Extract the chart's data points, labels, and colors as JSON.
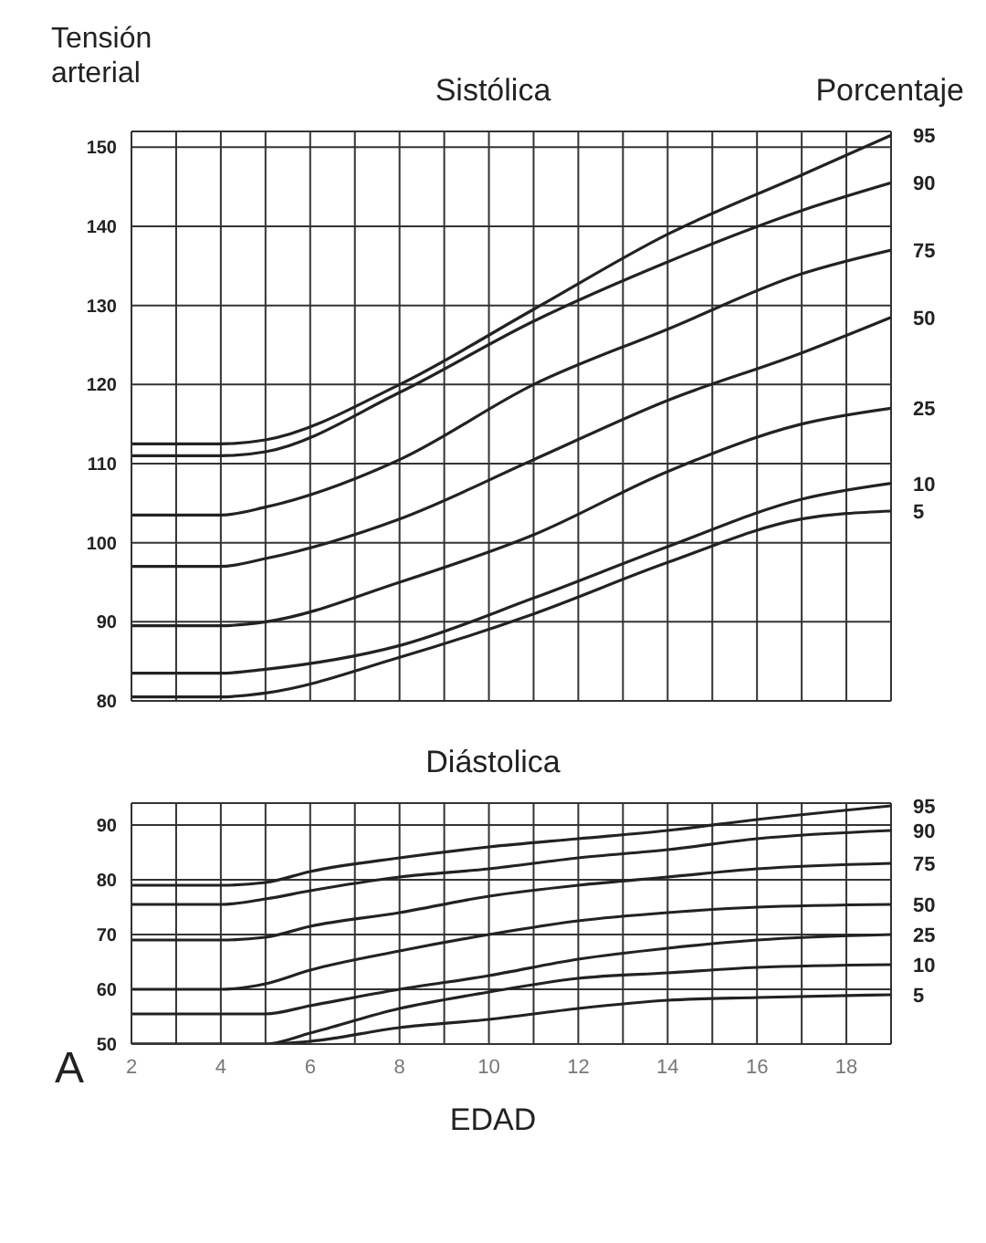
{
  "chart_data": [
    {
      "type": "line",
      "title": "Sistólica",
      "ylabel": "Tensión arterial",
      "legend_title": "Porcentaje",
      "x": [
        2,
        4,
        5,
        8,
        11,
        14,
        17,
        19
      ],
      "xlim": [
        2,
        19
      ],
      "xticks": [
        {
          "value": 2,
          "label": null
        },
        {
          "value": 3,
          "label": null
        },
        {
          "value": 4,
          "label": null
        },
        {
          "value": 5,
          "label": null
        },
        {
          "value": 6,
          "label": null
        },
        {
          "value": 7,
          "label": null
        },
        {
          "value": 8,
          "label": null
        },
        {
          "value": 9,
          "label": null
        },
        {
          "value": 10,
          "label": null
        },
        {
          "value": 11,
          "label": null
        },
        {
          "value": 12,
          "label": null
        },
        {
          "value": 13,
          "label": null
        },
        {
          "value": 14,
          "label": null
        },
        {
          "value": 15,
          "label": null
        },
        {
          "value": 16,
          "label": null
        },
        {
          "value": 17,
          "label": null
        },
        {
          "value": 18,
          "label": null
        },
        {
          "value": 19,
          "label": null
        }
      ],
      "ylim": [
        80,
        152
      ],
      "yticks": [
        80,
        90,
        100,
        110,
        120,
        130,
        140,
        150
      ],
      "tick_labels": "y",
      "grid": true,
      "marker": "none",
      "line_style": "solid",
      "legend": false,
      "series": [
        {
          "name": "95",
          "color": "#222222",
          "values": [
            112.5,
            112.5,
            113,
            120,
            129.5,
            139,
            146.5,
            151.5
          ]
        },
        {
          "name": "90",
          "color": "#222222",
          "values": [
            111,
            111,
            111.5,
            119,
            128,
            135.5,
            142,
            145.5
          ]
        },
        {
          "name": "75",
          "color": "#222222",
          "values": [
            103.5,
            103.5,
            104.5,
            110.5,
            120,
            127,
            134,
            137
          ]
        },
        {
          "name": "50",
          "color": "#222222",
          "values": [
            97,
            97,
            98,
            103,
            110.5,
            118,
            124,
            128.5
          ]
        },
        {
          "name": "25",
          "color": "#222222",
          "values": [
            89.5,
            89.5,
            90,
            95,
            101,
            109,
            115,
            117
          ]
        },
        {
          "name": "10",
          "color": "#222222",
          "values": [
            83.5,
            83.5,
            84,
            87,
            93,
            99.5,
            105.5,
            107.5
          ]
        },
        {
          "name": "5",
          "color": "#222222",
          "values": [
            80.5,
            80.5,
            81,
            85.5,
            91,
            97.5,
            103,
            104
          ]
        }
      ]
    },
    {
      "type": "line",
      "title": "Diástolica",
      "xlabel": "EDAD",
      "annotations": [
        "A"
      ],
      "x": [
        2,
        4,
        5,
        6,
        8,
        10,
        12,
        14,
        16,
        19
      ],
      "xlim": [
        2,
        19
      ],
      "xticks": [
        2,
        {
          "value": 3,
          "label": null
        },
        4,
        {
          "value": 5,
          "label": null
        },
        6,
        {
          "value": 7,
          "label": null
        },
        8,
        {
          "value": 9,
          "label": null
        },
        10,
        {
          "value": 11,
          "label": null
        },
        12,
        {
          "value": 13,
          "label": null
        },
        14,
        {
          "value": 15,
          "label": null
        },
        16,
        {
          "value": 17,
          "label": null
        },
        18,
        {
          "value": 19,
          "label": null
        }
      ],
      "ylim": [
        50,
        94
      ],
      "yticks": [
        50,
        60,
        70,
        80,
        90
      ],
      "grid": true,
      "marker": "none",
      "line_style": "solid",
      "legend": false,
      "series": [
        {
          "name": "95",
          "color": "#222222",
          "values": [
            79,
            79,
            79.5,
            81.5,
            84,
            86,
            87.5,
            89,
            91,
            93.5
          ]
        },
        {
          "name": "90",
          "color": "#222222",
          "values": [
            75.5,
            75.5,
            76.5,
            78,
            80.5,
            82,
            84,
            85.5,
            87.5,
            89
          ]
        },
        {
          "name": "75",
          "color": "#222222",
          "values": [
            69,
            69,
            69.5,
            71.5,
            74,
            77,
            79,
            80.5,
            82,
            83
          ]
        },
        {
          "name": "50",
          "color": "#222222",
          "values": [
            60,
            60,
            61,
            63.5,
            67,
            70,
            72.5,
            74,
            75,
            75.5
          ]
        },
        {
          "name": "25",
          "color": "#222222",
          "values": [
            55.5,
            55.5,
            55.5,
            57,
            60,
            62.5,
            65.5,
            67.5,
            69,
            70
          ]
        },
        {
          "name": "10",
          "color": "#222222",
          "values": [
            50,
            50,
            50,
            52,
            56.5,
            59.5,
            62,
            63,
            64,
            64.5
          ]
        },
        {
          "name": "5",
          "color": "#222222",
          "values": [
            50,
            50,
            50,
            50.5,
            53,
            54.5,
            56.5,
            58,
            58.5,
            59
          ]
        }
      ]
    }
  ]
}
